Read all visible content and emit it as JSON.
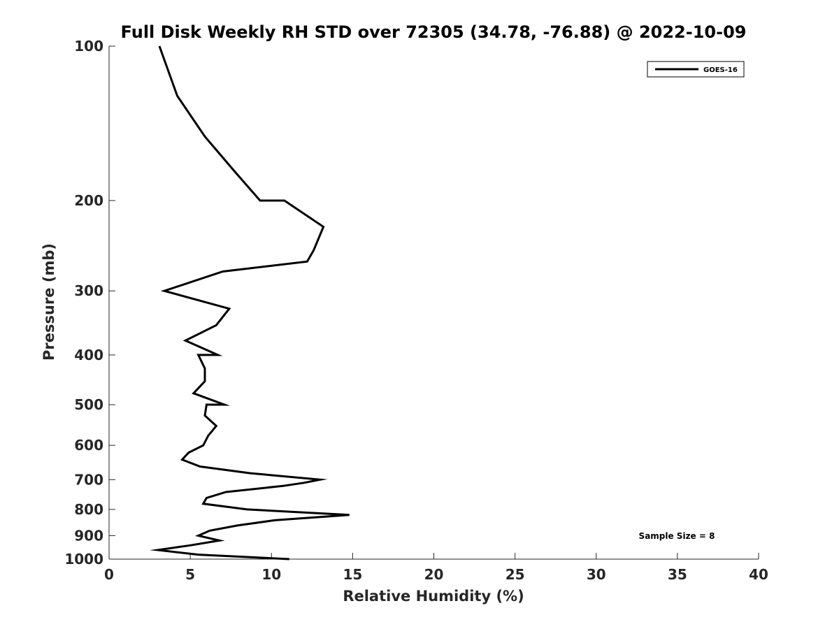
{
  "chart_data": {
    "type": "line",
    "title": "Full Disk Weekly RH STD over 72305 (34.78, -76.88) @ 2022-10-09",
    "xlabel": "Relative Humidity (%)",
    "ylabel": "Pressure (mb)",
    "xlim": [
      0,
      40
    ],
    "ylim": [
      100,
      1000
    ],
    "y_scale": "log",
    "y_reversed": true,
    "x_ticks": [
      0,
      5,
      10,
      15,
      20,
      25,
      30,
      35,
      40
    ],
    "y_ticks": [
      100,
      200,
      300,
      400,
      500,
      600,
      700,
      800,
      900,
      1000
    ],
    "grid": false,
    "legend": "top-right",
    "annotation": "Sample Size = 8",
    "series": [
      {
        "name": "GOES-16",
        "color": "#000000",
        "points": [
          [
            3.1,
            100
          ],
          [
            4.2,
            125
          ],
          [
            5.9,
            150
          ],
          [
            7.7,
            175
          ],
          [
            9.3,
            200
          ],
          [
            10.8,
            200
          ],
          [
            13.2,
            225
          ],
          [
            12.6,
            250
          ],
          [
            12.2,
            263
          ],
          [
            7.0,
            275
          ],
          [
            3.4,
            300
          ],
          [
            7.4,
            325
          ],
          [
            6.6,
            350
          ],
          [
            4.7,
            375
          ],
          [
            6.7,
            400
          ],
          [
            5.5,
            400
          ],
          [
            5.9,
            425
          ],
          [
            5.9,
            450
          ],
          [
            5.2,
            475
          ],
          [
            7.1,
            500
          ],
          [
            6.0,
            500
          ],
          [
            5.9,
            525
          ],
          [
            6.6,
            550
          ],
          [
            6.1,
            575
          ],
          [
            5.8,
            600
          ],
          [
            4.9,
            620
          ],
          [
            4.5,
            640
          ],
          [
            5.6,
            660
          ],
          [
            8.7,
            680
          ],
          [
            13.0,
            700
          ],
          [
            12.0,
            710
          ],
          [
            10.7,
            720
          ],
          [
            7.2,
            740
          ],
          [
            6.0,
            760
          ],
          [
            5.8,
            780
          ],
          [
            8.5,
            800
          ],
          [
            14.8,
            820
          ],
          [
            10.2,
            840
          ],
          [
            7.9,
            860
          ],
          [
            6.2,
            880
          ],
          [
            5.5,
            900
          ],
          [
            6.8,
            920
          ],
          [
            5.0,
            940
          ],
          [
            3.0,
            960
          ],
          [
            5.5,
            980
          ],
          [
            11.1,
            1000
          ]
        ]
      }
    ]
  }
}
